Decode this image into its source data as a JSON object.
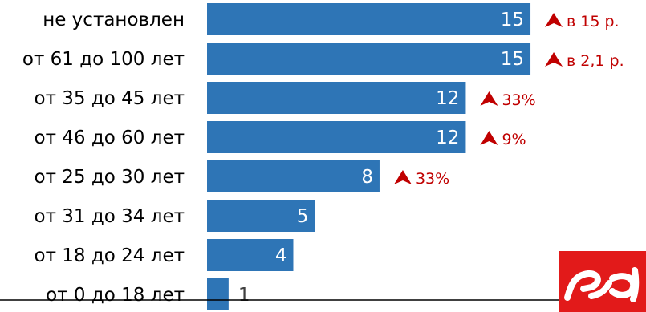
{
  "chart_data": {
    "type": "bar",
    "orientation": "horizontal",
    "title": "",
    "xlabel": "",
    "ylabel": "",
    "categories": [
      "не установлен",
      "от 61 до 100 лет",
      "от 35 до 45 лет",
      "от 46 до 60 лет",
      "от 25 до 30 лет",
      "от 31 до 34 лет",
      "от 18 до 24 лет",
      "от 0 до 18 лет"
    ],
    "values": [
      15,
      15,
      12,
      12,
      8,
      5,
      4,
      1
    ],
    "changes": [
      "в 15 р.",
      "в 2,1 р.",
      "33%",
      "9%",
      "33%",
      "",
      "",
      ""
    ],
    "change_direction": [
      "up",
      "up",
      "up",
      "up",
      "up",
      "",
      "",
      ""
    ],
    "xlim": [
      0,
      15
    ],
    "grid": false,
    "legend": "none"
  },
  "colors": {
    "bar": "#2E75B6",
    "value_inside": "#ffffff",
    "value_outside": "#404040",
    "change": "#C00000",
    "logo_bg": "#E21A1A",
    "logo_fg": "#ffffff"
  },
  "icons": {
    "change_indicator": "arrow-up-icon",
    "logo": "rzd-logo"
  },
  "logo_text": "РЖД"
}
